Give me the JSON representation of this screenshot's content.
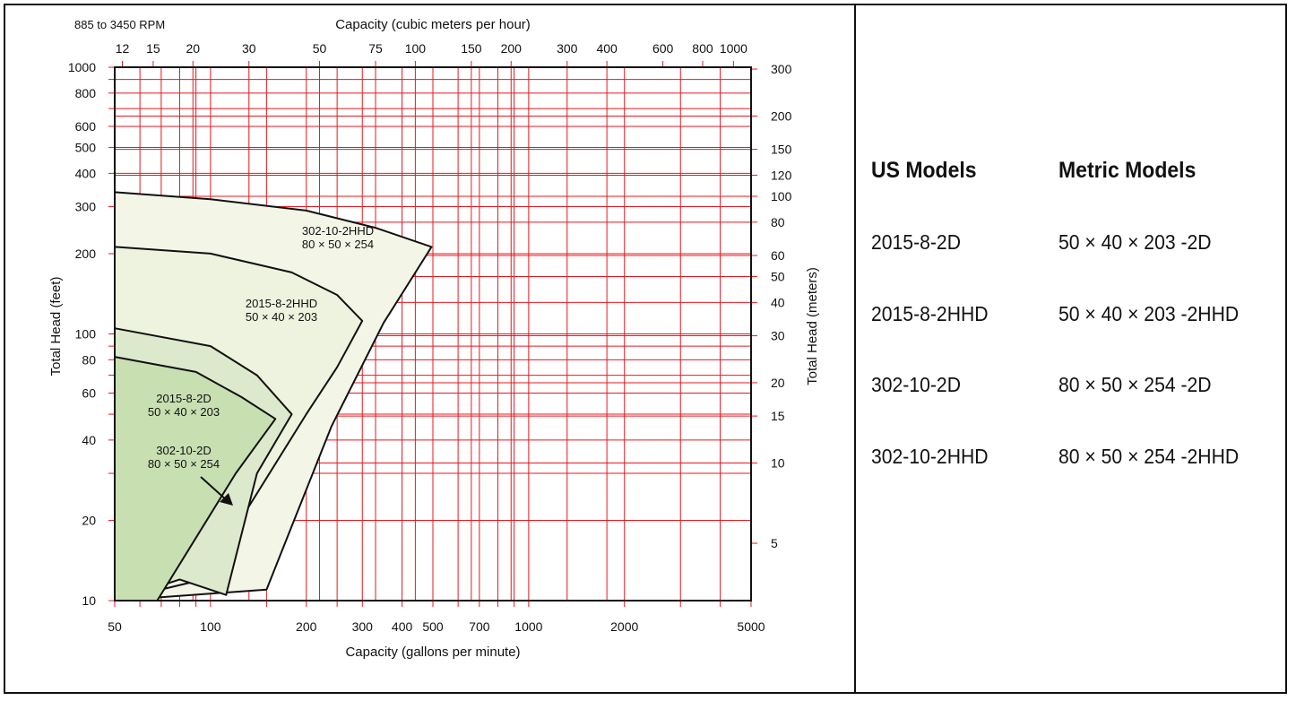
{
  "chart_data": {
    "type": "area",
    "title": "885 to 3450 RPM",
    "xlabel": "Capacity (gallons per minute)",
    "ylabel": "Total Head (feet)",
    "x2label": "Capacity (cubic meters per hour)",
    "y2label": "Total Head (meters)",
    "xscale": "log",
    "yscale": "log",
    "xlim": [
      50,
      5000
    ],
    "ylim": [
      10,
      1000
    ],
    "x_ticks": [
      "50",
      "100",
      "200",
      "300",
      "400",
      "500",
      "700",
      "1000",
      "2000",
      "5000"
    ],
    "y_ticks": [
      "10",
      "20",
      "40",
      "60",
      "80",
      "100",
      "200",
      "300",
      "400",
      "500",
      "600",
      "800",
      "1000"
    ],
    "x2_ticks": [
      "12",
      "15",
      "20",
      "30",
      "50",
      "75",
      "100",
      "150",
      "200",
      "300",
      "400",
      "600",
      "800",
      "1000"
    ],
    "y2_ticks": [
      "5",
      "10",
      "15",
      "20",
      "30",
      "40",
      "50",
      "60",
      "80",
      "100",
      "120",
      "150",
      "200",
      "300"
    ],
    "grid": true,
    "regions": [
      {
        "label_line1": "302-10-2HHD",
        "label_line2": "80 × 50 × 254",
        "fill": "#f3f6e6",
        "boundary": [
          [
            50,
            10
          ],
          [
            50,
            340
          ],
          [
            100,
            320
          ],
          [
            200,
            290
          ],
          [
            330,
            250
          ],
          [
            495,
            212
          ],
          [
            350,
            110
          ],
          [
            240,
            45
          ],
          [
            150,
            11
          ]
        ]
      },
      {
        "label_line1": "2015-8-2HHD",
        "label_line2": "50 × 40 × 203",
        "fill": "#eef3df",
        "boundary": [
          [
            50,
            10
          ],
          [
            50,
            212
          ],
          [
            100,
            200
          ],
          [
            180,
            170
          ],
          [
            250,
            140
          ],
          [
            300,
            112
          ],
          [
            250,
            75
          ],
          [
            200,
            50
          ],
          [
            95,
            12
          ]
        ]
      },
      {
        "label_line1": "302-10-2D",
        "label_line2": "80 × 50 × 254",
        "fill": "#dde9cc",
        "boundary": [
          [
            50,
            10
          ],
          [
            50,
            105
          ],
          [
            100,
            90
          ],
          [
            140,
            70
          ],
          [
            180,
            50
          ],
          [
            140,
            30
          ],
          [
            112,
            10.5
          ],
          [
            80,
            12
          ]
        ]
      },
      {
        "label_line1": "2015-8-2D",
        "label_line2": "50 × 40 × 203",
        "fill": "#c8dfb2",
        "boundary": [
          [
            50,
            10
          ],
          [
            50,
            82
          ],
          [
            90,
            72
          ],
          [
            125,
            58
          ],
          [
            160,
            48
          ],
          [
            120,
            30
          ],
          [
            68,
            10
          ]
        ]
      }
    ]
  },
  "models": {
    "us_header": "US Models",
    "metric_header": "Metric Models",
    "rows": [
      {
        "us": "2015-8-2D",
        "metric": "50 × 40 × 203 -2D"
      },
      {
        "us": "2015-8-2HHD",
        "metric": "50 × 40 × 203 -2HHD"
      },
      {
        "us": "302-10-2D",
        "metric": "80 × 50 × 254 -2D"
      },
      {
        "us": "302-10-2HHD",
        "metric": "80 × 50 × 254 -2HHD"
      }
    ]
  }
}
